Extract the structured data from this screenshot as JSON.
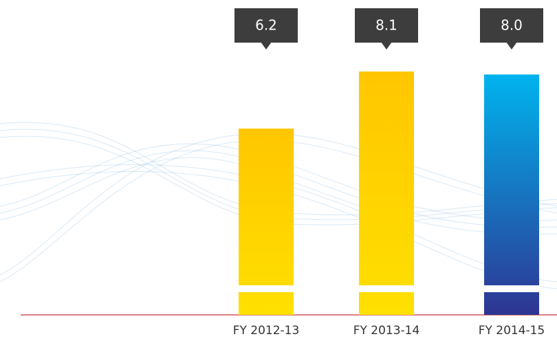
{
  "chart_data": {
    "type": "bar",
    "categories": [
      "FY 2012-13",
      "FY 2013-14",
      "FY 2014-15"
    ],
    "values": [
      6.2,
      8.1,
      8.0
    ],
    "value_labels": [
      "6.2",
      "8.1",
      "8.0"
    ],
    "colors": [
      [
        "#ffe000",
        "#ffc600"
      ],
      [
        "#ffe000",
        "#ffc600"
      ],
      [
        "#2e3592",
        "#00b4ee"
      ]
    ]
  }
}
